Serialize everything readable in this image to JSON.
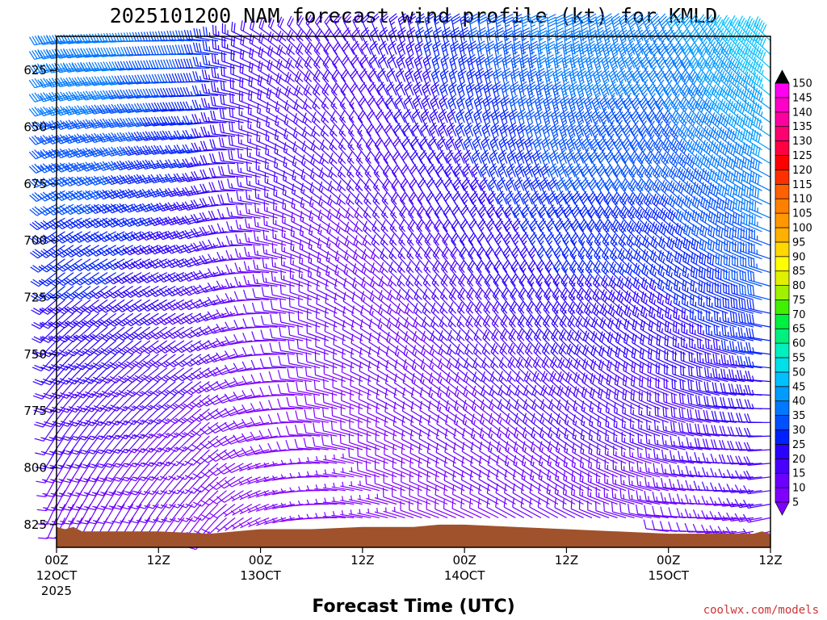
{
  "chart_data": {
    "type": "wind-profile",
    "title": "2025101200 NAM forecast wind profile (kt) for KMLD",
    "xlabel": "Forecast Time (UTC)",
    "y_axis": {
      "range": [
        610,
        835
      ],
      "reversed": true,
      "ticks": [
        625,
        650,
        675,
        700,
        725,
        750,
        775,
        800,
        825
      ]
    },
    "x_axis": {
      "range_hours": [
        0,
        84
      ],
      "ticks": [
        {
          "hour": 0,
          "label": "00Z",
          "sub": "12OCT",
          "sub2": "2025"
        },
        {
          "hour": 12,
          "label": "12Z",
          "sub": "",
          "sub2": ""
        },
        {
          "hour": 24,
          "label": "00Z",
          "sub": "13OCT",
          "sub2": ""
        },
        {
          "hour": 36,
          "label": "12Z",
          "sub": "",
          "sub2": ""
        },
        {
          "hour": 48,
          "label": "00Z",
          "sub": "14OCT",
          "sub2": ""
        },
        {
          "hour": 60,
          "label": "12Z",
          "sub": "",
          "sub2": ""
        },
        {
          "hour": 72,
          "label": "00Z",
          "sub": "15OCT",
          "sub2": ""
        },
        {
          "hour": 84,
          "label": "12Z",
          "sub": "",
          "sub2": ""
        }
      ]
    },
    "colorbar": {
      "levels": [
        5,
        10,
        15,
        20,
        25,
        30,
        35,
        40,
        45,
        50,
        55,
        60,
        65,
        70,
        75,
        80,
        85,
        90,
        95,
        100,
        105,
        110,
        115,
        120,
        125,
        130,
        135,
        140,
        145,
        150
      ],
      "colors": [
        "#8000ff",
        "#6a00ff",
        "#4a00ff",
        "#2a00ff",
        "#0020ff",
        "#0050ff",
        "#0078ff",
        "#009cff",
        "#00c0ff",
        "#00e0e8",
        "#00f0c0",
        "#00f080",
        "#00f040",
        "#40f000",
        "#a0f000",
        "#e0f000",
        "#ffff00",
        "#ffd800",
        "#ffb000",
        "#ff9800",
        "#ff8000",
        "#ff6000",
        "#ff3000",
        "#ff0000",
        "#ff0040",
        "#ff0070",
        "#ff00a0",
        "#ff00c8",
        "#ff00f0",
        "#ff00ff"
      ]
    },
    "terrain_color": "#a0522d",
    "surface_pressure": [
      [
        0,
        826
      ],
      [
        1,
        827
      ],
      [
        2,
        826
      ],
      [
        3,
        828
      ],
      [
        6,
        828
      ],
      [
        12,
        828
      ],
      [
        18,
        829
      ],
      [
        24,
        827
      ],
      [
        30,
        827
      ],
      [
        36,
        826
      ],
      [
        42,
        826
      ],
      [
        45,
        825
      ],
      [
        48,
        825
      ],
      [
        54,
        826
      ],
      [
        60,
        827
      ],
      [
        66,
        828
      ],
      [
        72,
        829
      ],
      [
        78,
        829
      ],
      [
        82,
        829
      ],
      [
        83,
        828
      ],
      [
        84,
        829
      ]
    ],
    "wind_profile": [
      {
        "hour": 0,
        "speed": 40,
        "dir": 260
      },
      {
        "hour": 6,
        "speed": 40,
        "dir": 265
      },
      {
        "hour": 12,
        "speed": 35,
        "dir": 270
      },
      {
        "hour": 18,
        "speed": 30,
        "dir": 275
      },
      {
        "hour": 24,
        "speed": 20,
        "dir": 300
      },
      {
        "hour": 30,
        "speed": 20,
        "dir": 320
      },
      {
        "hour": 36,
        "speed": 20,
        "dir": 335
      },
      {
        "hour": 42,
        "speed": 25,
        "dir": 345
      },
      {
        "hour": 48,
        "speed": 30,
        "dir": 350
      },
      {
        "hour": 54,
        "speed": 35,
        "dir": 355
      },
      {
        "hour": 60,
        "speed": 40,
        "dir": 355
      },
      {
        "hour": 66,
        "speed": 40,
        "dir": 345
      },
      {
        "hour": 72,
        "speed": 40,
        "dir": 335
      },
      {
        "hour": 78,
        "speed": 45,
        "dir": 325
      },
      {
        "hour": 84,
        "speed": 50,
        "dir": 315
      }
    ],
    "shear": {
      "surface_speed_factor": 0.25,
      "surface_dir_shift": -60
    },
    "grid": false
  },
  "credit": "coolwx.com/models"
}
